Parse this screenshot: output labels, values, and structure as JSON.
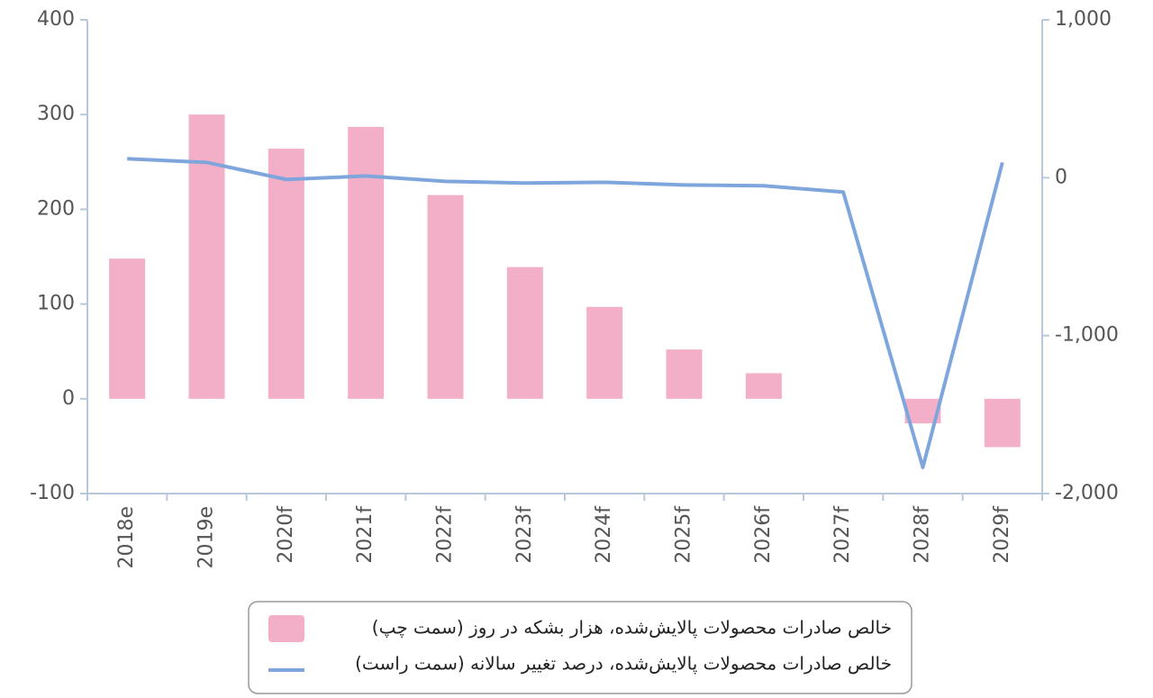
{
  "chart_data": {
    "type": "bar_line",
    "categories": [
      "2018e",
      "2019e",
      "2020f",
      "2021f",
      "2022f",
      "2023f",
      "2024f",
      "2025f",
      "2026f",
      "2027f",
      "2028f",
      "2029f"
    ],
    "series": [
      {
        "name": "خالص صادرات محصولات پالایش‌شده، هزار بشکه در روز (سمت چپ)",
        "color": "#f4afc8",
        "type": "bar",
        "values": [
          148,
          300,
          264,
          287,
          215,
          139,
          97,
          52,
          27,
          0,
          -26,
          -51
        ]
      },
      {
        "name": "خالص صادرات محصولات پالایش‌شده، درصد تغییر سالانه (سمت راست)",
        "color": "#7fa6dc",
        "type": "line",
        "axis": "y2",
        "values": [
          120,
          97,
          -11,
          11,
          -23,
          -34,
          -29,
          -46,
          -51,
          -91,
          -1834,
          97
        ]
      }
    ],
    "ylim": [
      -100,
      400
    ],
    "yticks": [
      -100,
      0,
      100,
      200,
      300,
      400
    ],
    "y2lim": [
      -2000,
      1000
    ],
    "y2ticks": [
      {
        "value": -2000,
        "label": "-2,000"
      },
      {
        "value": -1000,
        "label": "-1,000"
      },
      0,
      {
        "value": 1000,
        "label": "1,000"
      }
    ]
  }
}
